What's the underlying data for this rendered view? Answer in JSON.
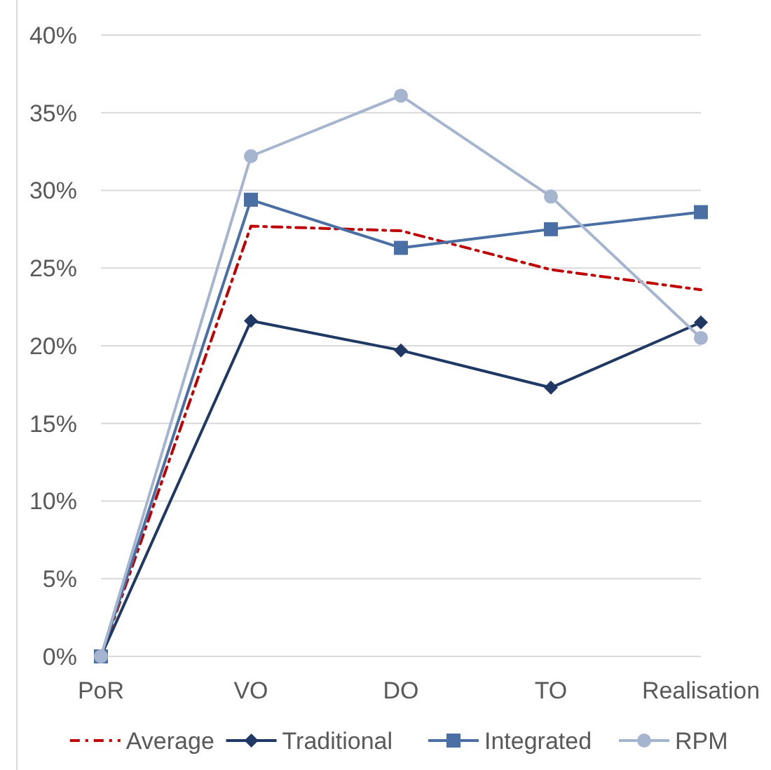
{
  "chart_data": {
    "type": "line",
    "categories": [
      "PoR",
      "VO",
      "DO",
      "TO",
      "Realisation"
    ],
    "series": [
      {
        "name": "Average",
        "color": "#c00000",
        "values": [
          0,
          27.7,
          27.4,
          24.9,
          23.6
        ],
        "marker": "none",
        "line_style": "dashed"
      },
      {
        "name": "Traditional",
        "color": "#1f3864",
        "values": [
          0,
          21.6,
          19.7,
          17.3,
          21.5
        ],
        "marker": "diamond",
        "line_style": "solid"
      },
      {
        "name": "Integrated",
        "color": "#4a6fa5",
        "values": [
          0,
          29.4,
          26.3,
          27.5,
          28.6
        ],
        "marker": "square",
        "line_style": "solid"
      },
      {
        "name": "RPM",
        "color": "#a5b5cf",
        "values": [
          0,
          32.2,
          36.1,
          29.6,
          20.5
        ],
        "marker": "circle",
        "line_style": "solid"
      }
    ],
    "ylim": [
      0,
      40
    ],
    "yticks": [
      {
        "value": 0,
        "label": "0%"
      },
      {
        "value": 5,
        "label": "5%"
      },
      {
        "value": 10,
        "label": "10%"
      },
      {
        "value": 15,
        "label": "15%"
      },
      {
        "value": 20,
        "label": "20%"
      },
      {
        "value": 25,
        "label": "25%"
      },
      {
        "value": 30,
        "label": "30%"
      },
      {
        "value": 35,
        "label": "35%"
      },
      {
        "value": 40,
        "label": "40%"
      }
    ],
    "grid": "y",
    "legend": "bottom"
  }
}
